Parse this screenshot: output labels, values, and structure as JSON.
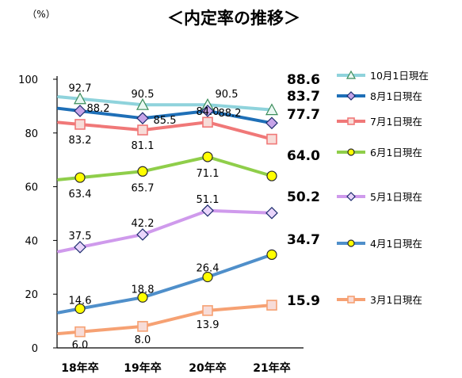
{
  "chart_data": {
    "type": "line",
    "title": "＜内定率の推移＞",
    "unit_label": "（%）",
    "categories": [
      "18年卒",
      "19年卒",
      "20年卒",
      "21年卒"
    ],
    "ylim": [
      0,
      100
    ],
    "yticks": [
      "0",
      "20",
      "40",
      "60",
      "80",
      "100"
    ],
    "grid": false,
    "legend_position": "right",
    "series": [
      {
        "name": "10月1日現在",
        "values": [
          92.7,
          90.5,
          90.5,
          88.6
        ],
        "labels": [
          "92.7",
          "90.5",
          "90.5",
          "88.6"
        ],
        "color": "#8fd3dc",
        "marker": "triangle"
      },
      {
        "name": "8月1日現在",
        "values": [
          88.2,
          85.5,
          88.2,
          83.7
        ],
        "labels": [
          "88.2",
          "85.5",
          "88.2",
          "83.7"
        ],
        "color": "#1e6fb7",
        "marker": "diamond"
      },
      {
        "name": "7月1日現在",
        "values": [
          83.2,
          81.1,
          84.0,
          77.7
        ],
        "labels": [
          "83.2",
          "81.1",
          "84.0",
          "77.7"
        ],
        "color": "#f07878",
        "marker": "square"
      },
      {
        "name": "6月1日現在",
        "values": [
          63.4,
          65.7,
          71.1,
          64.0
        ],
        "labels": [
          "63.4",
          "65.7",
          "71.1",
          "64.0"
        ],
        "color": "#8fce4a",
        "marker": "circle"
      },
      {
        "name": "5月1日現在",
        "values": [
          37.5,
          42.2,
          51.1,
          50.2
        ],
        "labels": [
          "37.5",
          "42.2",
          "51.1",
          "50.2"
        ],
        "color": "#cf9aec",
        "marker": "diamond"
      },
      {
        "name": "4月1日現在",
        "values": [
          14.6,
          18.8,
          26.4,
          34.7
        ],
        "labels": [
          "14.6",
          "18.8",
          "26.4",
          "34.7"
        ],
        "color": "#4f8fca",
        "marker": "circle"
      },
      {
        "name": "3月1日現在",
        "values": [
          6.0,
          8.0,
          13.9,
          15.9
        ],
        "labels": [
          "6.0",
          "8.0",
          "13.9",
          "15.9"
        ],
        "color": "#f6a173",
        "marker": "square"
      }
    ]
  }
}
